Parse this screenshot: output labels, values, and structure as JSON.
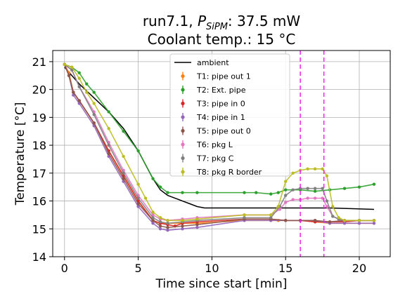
{
  "chart_data": {
    "type": "scatter",
    "title_main": "run7.1, ",
    "title_p": "P",
    "title_sub": "SiPM",
    "title_rest": ": 37.5 mW",
    "title_line2": "Coolant temp.: 15 °C",
    "xlabel": "Time since start [min]",
    "ylabel": "Temperature [°C]",
    "xlim": [
      -0.8,
      22.1
    ],
    "ylim": [
      14,
      21.4
    ],
    "xticks": [
      0,
      5,
      10,
      15,
      20
    ],
    "yticks": [
      14,
      15,
      16,
      17,
      18,
      19,
      20,
      21
    ],
    "grid": true,
    "legend_position": "top-center",
    "vlines": [
      16.0,
      17.6
    ],
    "vline_color": "#ee22ee",
    "series": [
      {
        "name": "ambient",
        "style": "line",
        "color": "#000000",
        "x": [
          0,
          0.5,
          1,
          2,
          3,
          4,
          5,
          5.5,
          6,
          6.5,
          7,
          7.5,
          8,
          8.5,
          9,
          9.5,
          10,
          12,
          14,
          16,
          18,
          21
        ],
        "y": [
          20.8,
          20.5,
          20.2,
          19.7,
          19.2,
          18.6,
          17.8,
          17.3,
          16.8,
          16.4,
          16.2,
          16.1,
          16.0,
          15.9,
          15.8,
          15.75,
          15.75,
          15.75,
          15.75,
          15.75,
          15.75,
          15.7
        ]
      },
      {
        "name": "T1: pipe out 1",
        "style": "marker",
        "color": "#ff7f0e",
        "x": [
          0,
          0.3,
          0.6,
          1,
          2,
          3,
          4,
          5,
          6,
          6.5,
          7,
          8,
          9,
          12.2,
          14,
          14.5,
          15,
          16,
          17,
          18,
          19,
          20,
          21
        ],
        "y": [
          20.9,
          20.6,
          19.9,
          19.6,
          18.8,
          17.8,
          16.9,
          16.0,
          15.3,
          15.2,
          15.2,
          15.2,
          15.2,
          15.3,
          15.3,
          15.3,
          15.3,
          15.3,
          15.25,
          15.2,
          15.2,
          15.2,
          15.2
        ]
      },
      {
        "name": "T2: Ext. pipe",
        "style": "marker",
        "color": "#2ca02c",
        "x": [
          0,
          0.5,
          1,
          1.5,
          2,
          3,
          4,
          5,
          6,
          6.5,
          7,
          8,
          9,
          12.2,
          13,
          14,
          14.5,
          15,
          16,
          17,
          18,
          19,
          20,
          21
        ],
        "y": [
          20.9,
          20.8,
          20.6,
          20.2,
          19.9,
          19.2,
          18.5,
          17.8,
          16.8,
          16.5,
          16.3,
          16.3,
          16.3,
          16.3,
          16.3,
          16.25,
          16.3,
          16.4,
          16.4,
          16.35,
          16.4,
          16.45,
          16.5,
          16.6
        ]
      },
      {
        "name": "T3: pipe in 0",
        "style": "marker",
        "color": "#d62728",
        "x": [
          0,
          0.3,
          0.6,
          1,
          2,
          3,
          4,
          5,
          6,
          6.5,
          7,
          7.5,
          8,
          9,
          12.2,
          14,
          15,
          16,
          17,
          18,
          19,
          20,
          21
        ],
        "y": [
          20.9,
          20.5,
          19.9,
          19.6,
          18.8,
          17.8,
          16.9,
          16.0,
          15.3,
          15.2,
          15.15,
          15.1,
          15.2,
          15.25,
          15.35,
          15.35,
          15.3,
          15.3,
          15.25,
          15.25,
          15.25,
          15.3,
          15.3
        ]
      },
      {
        "name": "T4: pipe in 1",
        "style": "marker",
        "color": "#9467bd",
        "x": [
          0,
          0.3,
          0.6,
          1,
          2,
          3,
          4,
          5,
          6,
          6.5,
          7,
          8,
          9,
          12.2,
          14,
          15,
          16,
          17,
          18,
          19,
          20,
          21
        ],
        "y": [
          20.9,
          20.5,
          19.8,
          19.5,
          18.7,
          17.6,
          16.7,
          15.8,
          15.2,
          15.0,
          14.95,
          15.0,
          15.05,
          15.3,
          15.3,
          15.3,
          15.3,
          15.3,
          15.2,
          15.2,
          15.2,
          15.2
        ]
      },
      {
        "name": "T5: pipe out 0",
        "style": "marker",
        "color": "#8c564b",
        "x": [
          0,
          0.3,
          0.6,
          1,
          2,
          3,
          4,
          5,
          6,
          6.5,
          7,
          8,
          9,
          12.2,
          14,
          15,
          16,
          17,
          18,
          19,
          20,
          21
        ],
        "y": [
          20.9,
          20.5,
          19.9,
          19.6,
          18.8,
          17.7,
          16.8,
          15.9,
          15.3,
          15.1,
          15.05,
          15.1,
          15.15,
          15.35,
          15.35,
          15.3,
          15.3,
          15.3,
          15.25,
          15.3,
          15.3,
          15.3
        ]
      },
      {
        "name": "T6: pkg L",
        "style": "marker",
        "color": "#e377c2",
        "x": [
          0,
          0.5,
          1,
          2,
          3,
          4,
          5,
          6,
          6.5,
          7,
          8,
          9,
          12.2,
          14,
          14.6,
          15,
          15.5,
          16,
          16.5,
          17,
          17.5,
          17.8,
          18.2,
          18.6,
          19,
          20,
          21
        ],
        "y": [
          20.9,
          20.7,
          20.1,
          19.2,
          18.1,
          17.1,
          16.2,
          15.5,
          15.35,
          15.3,
          15.35,
          15.4,
          15.5,
          15.5,
          15.7,
          15.95,
          16.05,
          16.05,
          16.1,
          16.1,
          16.1,
          15.8,
          15.45,
          15.35,
          15.3,
          15.3,
          15.3
        ]
      },
      {
        "name": "T7: pkg C",
        "style": "marker",
        "color": "#7f7f7f",
        "x": [
          0,
          0.5,
          1,
          2,
          3,
          4,
          5,
          6,
          6.5,
          7,
          8,
          9,
          12.2,
          14,
          14.6,
          15,
          15.5,
          16,
          16.5,
          17,
          17.5,
          17.8,
          18.2,
          18.6,
          19,
          20,
          21
        ],
        "y": [
          20.9,
          20.7,
          20.1,
          19.1,
          18.0,
          17.0,
          16.1,
          15.4,
          15.25,
          15.2,
          15.25,
          15.3,
          15.4,
          15.4,
          15.8,
          16.2,
          16.4,
          16.45,
          16.45,
          16.45,
          16.45,
          16.0,
          15.45,
          15.35,
          15.3,
          15.3,
          15.3
        ]
      },
      {
        "name": "T8: pkg R border",
        "style": "marker",
        "color": "#bcbd22",
        "x": [
          0,
          0.5,
          1,
          1.5,
          2,
          3,
          4,
          5,
          5.5,
          6,
          6.5,
          7,
          8,
          9,
          12.2,
          14,
          14.5,
          15,
          15.5,
          16,
          16.5,
          17,
          17.5,
          17.8,
          18.2,
          18.6,
          19,
          20,
          21
        ],
        "y": [
          20.9,
          20.8,
          20.4,
          19.9,
          19.5,
          18.6,
          17.6,
          16.6,
          16.1,
          15.6,
          15.4,
          15.3,
          15.3,
          15.35,
          15.5,
          15.5,
          15.8,
          16.7,
          17.0,
          17.1,
          17.15,
          17.15,
          17.15,
          16.9,
          15.8,
          15.4,
          15.3,
          15.3,
          15.3
        ]
      }
    ]
  }
}
